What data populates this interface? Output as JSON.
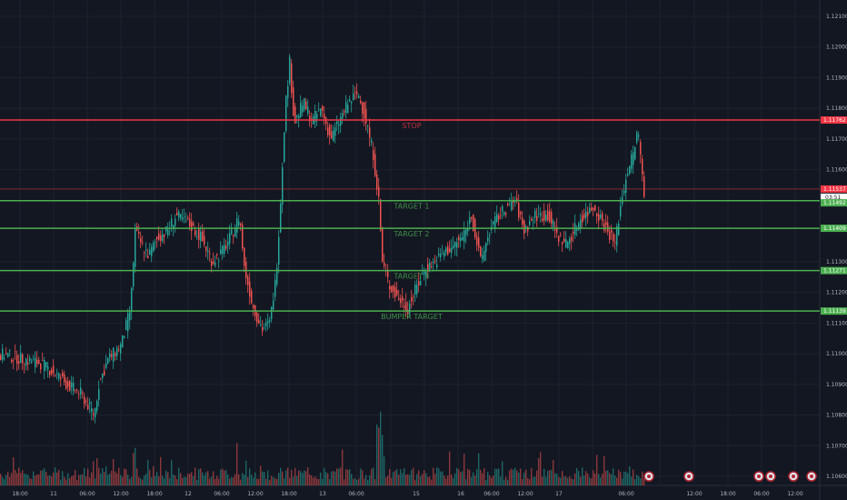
{
  "colors": {
    "background": "#131722",
    "grid": "#1e222d",
    "up": "#26a69a",
    "down": "#ef5350",
    "stop_line": "#f23645",
    "target_line": "#4caf50",
    "current_price_bg": "#f23645"
  },
  "chart_data": {
    "type": "candlestick",
    "title": "",
    "xlabel": "",
    "ylabel": "",
    "ylim": [
      1.1058,
      1.1212
    ],
    "grid": true,
    "x_ticks": [
      "18:00",
      "11",
      "06:00",
      "12:00",
      "18:00",
      "12",
      "06:00",
      "12:00",
      "18:00",
      "13",
      "06:00",
      "15",
      "16",
      "06:00",
      "12:00",
      "17",
      "06:00",
      "12:00",
      "18:00",
      "06:00",
      "12:00"
    ],
    "y_ticks": [
      "1.12100",
      "1.12000",
      "1.11900",
      "1.11800",
      "1.11700",
      "1.11600",
      "1.11300",
      "1.11200",
      "1.11100",
      "1.11000",
      "1.10900",
      "1.10800",
      "1.10700",
      "1.10600"
    ],
    "levels": [
      {
        "label": "STOP",
        "price": 1.11762,
        "price_label": "1.11762",
        "color": "#f23645"
      },
      {
        "label": "TARGET 1",
        "price": 1.11499,
        "price_label": "1.11499",
        "color": "#4caf50"
      },
      {
        "label": "TARGET 2",
        "price": 1.11409,
        "price_label": "1.11409",
        "color": "#4caf50"
      },
      {
        "label": "TARGET 3",
        "price": 1.11271,
        "price_label": "1.11271",
        "color": "#4caf50"
      },
      {
        "label": "BUMPER TARGET",
        "price": 1.11139,
        "price_label": "1.11139",
        "color": "#4caf50"
      }
    ],
    "current_price": {
      "price": 1.11537,
      "price_label": "1.11537",
      "countdown": "03:51",
      "color": "#f23645"
    },
    "extra_badge": {
      "price": 1.11492,
      "price_label": "1.11492",
      "color": "#4caf50"
    },
    "price_path": [
      [
        0,
        1.11
      ],
      [
        15,
        1.1099
      ],
      [
        30,
        1.1098
      ],
      [
        45,
        1.1097
      ],
      [
        60,
        1.1094
      ],
      [
        75,
        1.109
      ],
      [
        90,
        1.1087
      ],
      [
        105,
        1.108
      ],
      [
        110,
        1.109
      ],
      [
        120,
        1.1098
      ],
      [
        135,
        1.1103
      ],
      [
        145,
        1.1115
      ],
      [
        150,
        1.114
      ],
      [
        158,
        1.1135
      ],
      [
        165,
        1.1132
      ],
      [
        175,
        1.1138
      ],
      [
        185,
        1.114
      ],
      [
        195,
        1.1145
      ],
      [
        210,
        1.1142
      ],
      [
        222,
        1.1138
      ],
      [
        235,
        1.113
      ],
      [
        245,
        1.1133
      ],
      [
        255,
        1.1138
      ],
      [
        265,
        1.1145
      ],
      [
        270,
        1.1128
      ],
      [
        280,
        1.1115
      ],
      [
        290,
        1.1108
      ],
      [
        298,
        1.111
      ],
      [
        305,
        1.1125
      ],
      [
        310,
        1.115
      ],
      [
        315,
        1.118
      ],
      [
        320,
        1.1195
      ],
      [
        325,
        1.1175
      ],
      [
        335,
        1.1182
      ],
      [
        345,
        1.1176
      ],
      [
        355,
        1.118
      ],
      [
        365,
        1.117
      ],
      [
        375,
        1.1176
      ],
      [
        385,
        1.1182
      ],
      [
        395,
        1.1185
      ],
      [
        405,
        1.1175
      ],
      [
        412,
        1.1165
      ],
      [
        418,
        1.115
      ],
      [
        422,
        1.113
      ],
      [
        430,
        1.1122
      ],
      [
        440,
        1.1118
      ],
      [
        450,
        1.1115
      ],
      [
        460,
        1.1122
      ],
      [
        470,
        1.1128
      ],
      [
        480,
        1.113
      ],
      [
        490,
        1.1133
      ],
      [
        500,
        1.1135
      ],
      [
        510,
        1.1138
      ],
      [
        520,
        1.1145
      ],
      [
        530,
        1.113
      ],
      [
        540,
        1.114
      ],
      [
        550,
        1.1145
      ],
      [
        560,
        1.1148
      ],
      [
        568,
        1.115
      ],
      [
        578,
        1.114
      ],
      [
        590,
        1.1145
      ],
      [
        605,
        1.1145
      ],
      [
        615,
        1.1138
      ],
      [
        625,
        1.1136
      ],
      [
        640,
        1.1144
      ],
      [
        655,
        1.1148
      ],
      [
        670,
        1.114
      ],
      [
        678,
        1.1136
      ],
      [
        685,
        1.115
      ],
      [
        692,
        1.116
      ],
      [
        698,
        1.1165
      ],
      [
        703,
        1.1173
      ],
      [
        710,
        1.1153
      ]
    ]
  },
  "chart_icons": [
    "news-icon",
    "news-icon",
    "news-icon",
    "news-icon",
    "news-icon",
    "news-icon"
  ]
}
